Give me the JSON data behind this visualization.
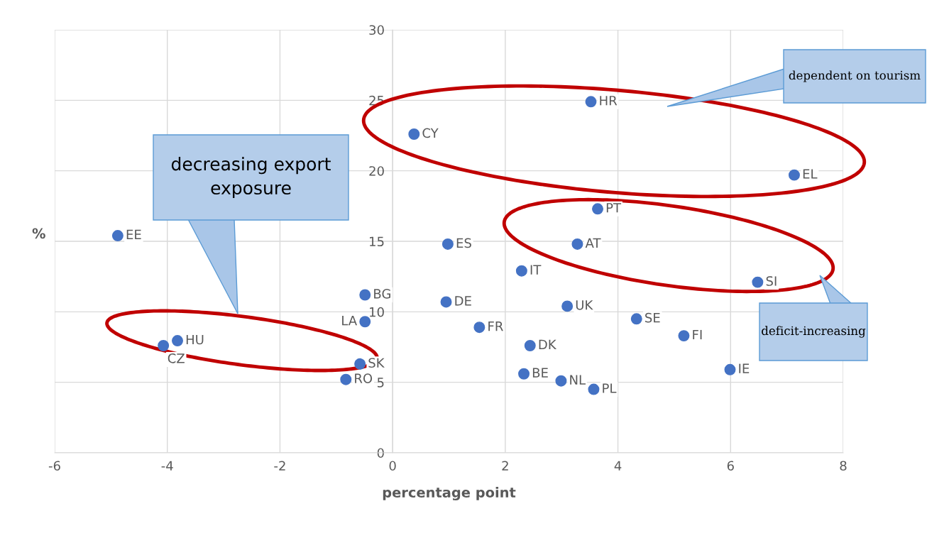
{
  "chart_data": {
    "type": "scatter",
    "xlabel": "percentage point",
    "ylabel": "%",
    "xlim": [
      -6,
      8
    ],
    "ylim": [
      0,
      30
    ],
    "xticks": [
      -6,
      -4,
      -2,
      0,
      2,
      4,
      6,
      8
    ],
    "yticks": [
      0,
      5,
      10,
      15,
      20,
      25,
      30
    ],
    "grid": true,
    "legend": false,
    "marker": "circle",
    "series": [
      {
        "name": "EE",
        "color": "#4472c4",
        "x": [
          -4.88
        ],
        "values": [
          15.4
        ]
      },
      {
        "name": "CZ",
        "color": "#4472c4",
        "x": [
          -4.07
        ],
        "values": [
          7.6
        ]
      },
      {
        "name": "HU",
        "color": "#4472c4",
        "x": [
          -3.82
        ],
        "values": [
          7.95
        ]
      },
      {
        "name": "RO",
        "color": "#4472c4",
        "x": [
          -0.83
        ],
        "values": [
          5.2
        ]
      },
      {
        "name": "SK",
        "color": "#4472c4",
        "x": [
          -0.58
        ],
        "values": [
          6.3
        ]
      },
      {
        "name": "LA",
        "color": "#4472c4",
        "x": [
          -0.49
        ],
        "values": [
          9.3
        ]
      },
      {
        "name": "BG",
        "color": "#4472c4",
        "x": [
          -0.49
        ],
        "values": [
          11.2
        ]
      },
      {
        "name": "CY",
        "color": "#4472c4",
        "x": [
          0.38
        ],
        "values": [
          22.6
        ]
      },
      {
        "name": "ES",
        "color": "#4472c4",
        "x": [
          0.98
        ],
        "values": [
          14.8
        ]
      },
      {
        "name": "DE",
        "color": "#4472c4",
        "x": [
          0.95
        ],
        "values": [
          10.7
        ]
      },
      {
        "name": "FR",
        "color": "#4472c4",
        "x": [
          1.54
        ],
        "values": [
          8.9
        ]
      },
      {
        "name": "IT",
        "color": "#4472c4",
        "x": [
          2.29
        ],
        "values": [
          12.9
        ]
      },
      {
        "name": "BE",
        "color": "#4472c4",
        "x": [
          2.33
        ],
        "values": [
          5.6
        ]
      },
      {
        "name": "DK",
        "color": "#4472c4",
        "x": [
          2.44
        ],
        "values": [
          7.6
        ]
      },
      {
        "name": "NL",
        "color": "#4472c4",
        "x": [
          2.99
        ],
        "values": [
          5.1
        ]
      },
      {
        "name": "UK",
        "color": "#4472c4",
        "x": [
          3.1
        ],
        "values": [
          10.4
        ]
      },
      {
        "name": "AT",
        "color": "#4472c4",
        "x": [
          3.28
        ],
        "values": [
          14.8
        ]
      },
      {
        "name": "HR",
        "color": "#4472c4",
        "x": [
          3.52
        ],
        "values": [
          24.9
        ]
      },
      {
        "name": "PT",
        "color": "#4472c4",
        "x": [
          3.64
        ],
        "values": [
          17.3
        ]
      },
      {
        "name": "PL",
        "color": "#4472c4",
        "x": [
          3.57
        ],
        "values": [
          4.5
        ]
      },
      {
        "name": "SE",
        "color": "#4472c4",
        "x": [
          4.33
        ],
        "values": [
          9.5
        ]
      },
      {
        "name": "FI",
        "color": "#4472c4",
        "x": [
          5.17
        ],
        "values": [
          8.3
        ]
      },
      {
        "name": "IE",
        "color": "#4472c4",
        "x": [
          5.99
        ],
        "values": [
          5.9
        ]
      },
      {
        "name": "SI",
        "color": "#4472c4",
        "x": [
          6.48
        ],
        "values": [
          12.1
        ]
      },
      {
        "name": "EL",
        "color": "#4472c4",
        "x": [
          7.13
        ],
        "values": [
          19.7
        ]
      }
    ],
    "annotations": [
      "decreasing export\nexposure",
      "dependent on tourism",
      "deficit-increasing"
    ]
  }
}
